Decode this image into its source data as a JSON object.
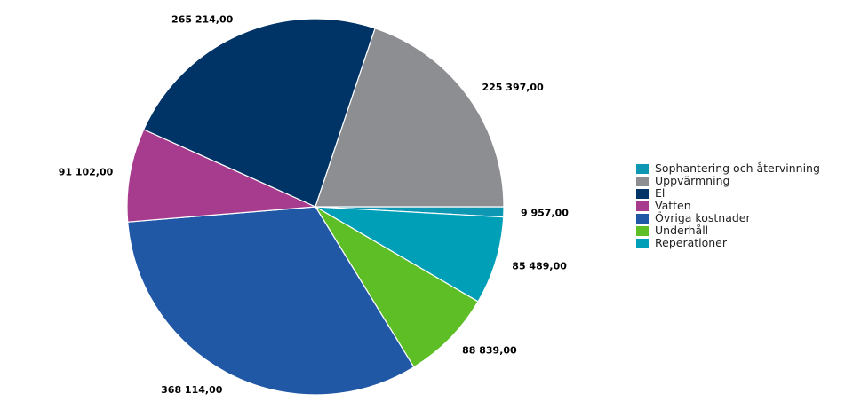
{
  "chart_data": {
    "type": "pie",
    "title": "",
    "slices": [
      {
        "name": "Sophantering och återvinning",
        "value": 9957,
        "label": "9 957,00",
        "color": "#0e97b2"
      },
      {
        "name": "Reperationer",
        "value": 85489,
        "label": "85 489,00",
        "color": "#009fb8"
      },
      {
        "name": "Underhåll",
        "value": 88839,
        "label": "88 839,00",
        "color": "#5dbe26"
      },
      {
        "name": "Övriga kostnader",
        "value": 368114,
        "label": "368 114,00",
        "color": "#2058a5"
      },
      {
        "name": "Vatten",
        "value": 91102,
        "label": "91 102,00",
        "color": "#a73c8e"
      },
      {
        "name": "El",
        "value": 265214,
        "label": "265 214,00",
        "color": "#003366"
      },
      {
        "name": "Uppvärmning",
        "value": 225397,
        "label": "225 397,00",
        "color": "#8d8e92"
      }
    ],
    "legend": {
      "placement": "right",
      "items": [
        {
          "name": "Sophantering och återvinning",
          "color": "#0e97b2"
        },
        {
          "name": "Uppvärmning",
          "color": "#8d8e92"
        },
        {
          "name": "El",
          "color": "#003366"
        },
        {
          "name": "Vatten",
          "color": "#a73c8e"
        },
        {
          "name": "Övriga kostnader",
          "color": "#2058a5"
        },
        {
          "name": "Underhåll",
          "color": "#5dbe26"
        },
        {
          "name": "Reperationer",
          "color": "#009fb8"
        }
      ]
    }
  }
}
